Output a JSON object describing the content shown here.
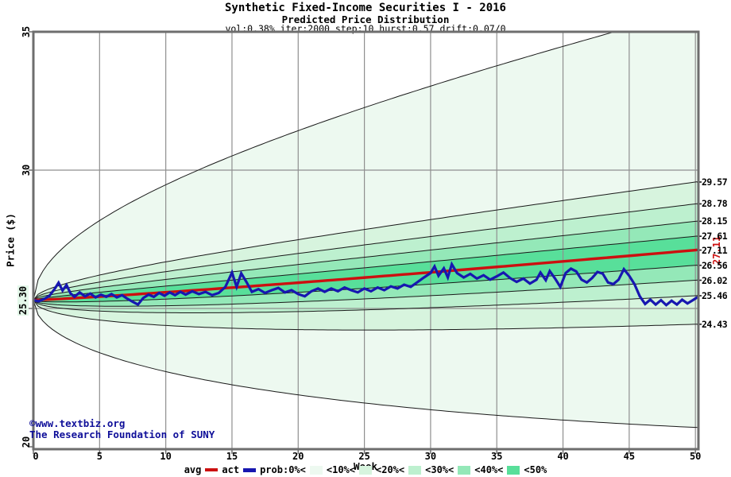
{
  "header": {
    "title": "Synthetic Fixed-Income Securities I - 2016",
    "subtitle": "Predicted Price Distribution",
    "params": "vol:0.38% iter:2000 step:10 hurst:0.57 drift:0.07/0"
  },
  "watermark": {
    "line1": "©www.textbiz.org",
    "line2": "The Research Foundation of SUNY"
  },
  "legend": {
    "avg_label": "avg",
    "act_label": "act",
    "prob_label": "prob:0%<",
    "band_labels": [
      "<10%<",
      "<20%<",
      "<30%<",
      "<40%<",
      "<50%"
    ]
  },
  "chart_data": {
    "type": "area",
    "title": "Predicted Price Distribution",
    "xlabel": "Week",
    "ylabel": "Price ($)",
    "xlim": [
      0,
      50
    ],
    "ylim": [
      19.9,
      35
    ],
    "grid": true,
    "x_ticks": [
      0,
      5,
      10,
      15,
      20,
      25,
      30,
      35,
      40,
      45,
      50
    ],
    "y_tick_labels_shown": [
      "35",
      "30",
      "20"
    ],
    "y_tick_values_shown": [
      35,
      30,
      20
    ],
    "y_grid_values": [
      30,
      25
    ],
    "y_stub_values": [
      35,
      30,
      25,
      20
    ],
    "start_price": 25.3,
    "start_label": "25.30",
    "center_end": 27.11,
    "avg_end_label": "27.11",
    "drift_exponent": 1.15,
    "quantile_end": {
      "p90": 29.57,
      "p80": 28.78,
      "p70": 28.15,
      "p60": 27.61,
      "p50": 27.11,
      "p40": 26.56,
      "p30": 26.02,
      "p20": 25.46,
      "p10": 24.43
    },
    "right_labels": [
      "29.57",
      "28.78",
      "28.15",
      "27.61",
      "27.11",
      "26.56",
      "26.02",
      "25.46",
      "24.43"
    ],
    "right_values": [
      29.57,
      28.78,
      28.15,
      27.61,
      27.11,
      26.56,
      26.02,
      25.46,
      24.43
    ],
    "envelope_end": {
      "top": 35.8,
      "bottom": 20.7
    },
    "band_colors": [
      "#edf9f0",
      "#d7f4de",
      "#bdf0cf",
      "#94e8b8",
      "#58df9a"
    ],
    "avg_color": "#cc1010",
    "act_color": "#1717b0",
    "act_series": [
      [
        0,
        25.3
      ],
      [
        0.4,
        25.26
      ],
      [
        0.8,
        25.34
      ],
      [
        1.2,
        25.45
      ],
      [
        1.6,
        25.7
      ],
      [
        1.9,
        25.93
      ],
      [
        2.2,
        25.65
      ],
      [
        2.5,
        25.85
      ],
      [
        2.8,
        25.55
      ],
      [
        3.1,
        25.42
      ],
      [
        3.5,
        25.58
      ],
      [
        3.9,
        25.44
      ],
      [
        4.3,
        25.54
      ],
      [
        4.7,
        25.4
      ],
      [
        5.1,
        25.5
      ],
      [
        5.5,
        25.42
      ],
      [
        5.9,
        25.52
      ],
      [
        6.3,
        25.4
      ],
      [
        6.7,
        25.48
      ],
      [
        7.1,
        25.35
      ],
      [
        7.5,
        25.24
      ],
      [
        7.9,
        25.14
      ],
      [
        8.3,
        25.38
      ],
      [
        8.7,
        25.5
      ],
      [
        9.1,
        25.42
      ],
      [
        9.5,
        25.56
      ],
      [
        9.9,
        25.46
      ],
      [
        10.3,
        25.58
      ],
      [
        10.7,
        25.48
      ],
      [
        11.1,
        25.6
      ],
      [
        11.5,
        25.5
      ],
      [
        12,
        25.62
      ],
      [
        12.5,
        25.52
      ],
      [
        13,
        25.6
      ],
      [
        13.5,
        25.48
      ],
      [
        14,
        25.56
      ],
      [
        14.5,
        25.78
      ],
      [
        15,
        26.3
      ],
      [
        15.35,
        25.78
      ],
      [
        15.7,
        26.27
      ],
      [
        16.1,
        25.95
      ],
      [
        16.5,
        25.6
      ],
      [
        17,
        25.7
      ],
      [
        17.5,
        25.56
      ],
      [
        18,
        25.66
      ],
      [
        18.5,
        25.74
      ],
      [
        19,
        25.58
      ],
      [
        19.5,
        25.66
      ],
      [
        20,
        25.52
      ],
      [
        20.5,
        25.44
      ],
      [
        21,
        25.62
      ],
      [
        21.5,
        25.72
      ],
      [
        22,
        25.6
      ],
      [
        22.5,
        25.72
      ],
      [
        23,
        25.62
      ],
      [
        23.5,
        25.76
      ],
      [
        24,
        25.66
      ],
      [
        24.5,
        25.58
      ],
      [
        25,
        25.72
      ],
      [
        25.5,
        25.62
      ],
      [
        26,
        25.76
      ],
      [
        26.5,
        25.66
      ],
      [
        27,
        25.8
      ],
      [
        27.5,
        25.72
      ],
      [
        28,
        25.86
      ],
      [
        28.5,
        25.78
      ],
      [
        29,
        25.95
      ],
      [
        29.5,
        26.12
      ],
      [
        30,
        26.28
      ],
      [
        30.3,
        26.52
      ],
      [
        30.6,
        26.18
      ],
      [
        31,
        26.45
      ],
      [
        31.3,
        26.12
      ],
      [
        31.6,
        26.6
      ],
      [
        32,
        26.28
      ],
      [
        32.5,
        26.12
      ],
      [
        33,
        26.25
      ],
      [
        33.5,
        26.08
      ],
      [
        34,
        26.2
      ],
      [
        34.5,
        26.04
      ],
      [
        35,
        26.16
      ],
      [
        35.5,
        26.3
      ],
      [
        36,
        26.1
      ],
      [
        36.5,
        25.96
      ],
      [
        37,
        26.08
      ],
      [
        37.5,
        25.9
      ],
      [
        38,
        26.04
      ],
      [
        38.3,
        26.3
      ],
      [
        38.7,
        26.02
      ],
      [
        39,
        26.35
      ],
      [
        39.4,
        26.08
      ],
      [
        39.8,
        25.78
      ],
      [
        40.2,
        26.28
      ],
      [
        40.6,
        26.44
      ],
      [
        41,
        26.34
      ],
      [
        41.4,
        26.04
      ],
      [
        41.8,
        25.94
      ],
      [
        42.2,
        26.1
      ],
      [
        42.6,
        26.32
      ],
      [
        43,
        26.26
      ],
      [
        43.4,
        25.94
      ],
      [
        43.8,
        25.88
      ],
      [
        44.2,
        26.04
      ],
      [
        44.6,
        26.42
      ],
      [
        45,
        26.18
      ],
      [
        45.4,
        25.88
      ],
      [
        45.8,
        25.44
      ],
      [
        46.2,
        25.16
      ],
      [
        46.6,
        25.32
      ],
      [
        47,
        25.14
      ],
      [
        47.4,
        25.3
      ],
      [
        47.8,
        25.12
      ],
      [
        48.2,
        25.28
      ],
      [
        48.6,
        25.14
      ],
      [
        49,
        25.32
      ],
      [
        49.4,
        25.18
      ],
      [
        49.8,
        25.3
      ],
      [
        50.2,
        25.42
      ]
    ]
  }
}
